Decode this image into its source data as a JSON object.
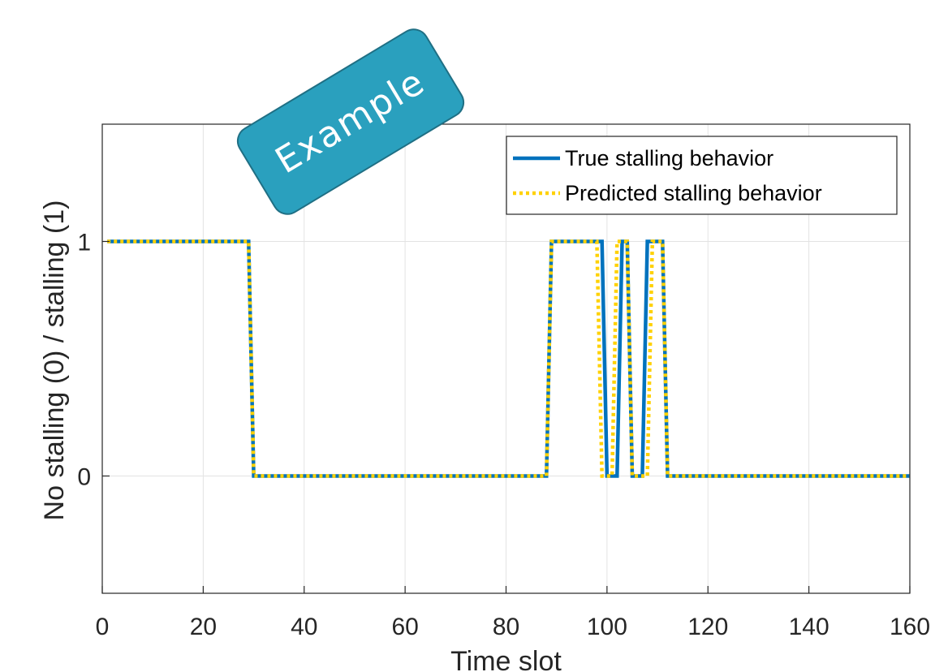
{
  "chart_data": {
    "type": "line",
    "title": "",
    "xlabel": "Time slot",
    "ylabel": "No stalling (0) / stalling (1)",
    "xlim": [
      0,
      160
    ],
    "ylim": [
      -0.5,
      1.5
    ],
    "xticks": [
      0,
      20,
      40,
      60,
      80,
      100,
      120,
      140,
      160
    ],
    "yticks": [
      0,
      1
    ],
    "grid": true,
    "legend_position": "top-right",
    "series": [
      {
        "name": "True stalling behavior",
        "color": "#0072BD",
        "style": "solid",
        "x": [
          1,
          29,
          30,
          88,
          89,
          99,
          100,
          102,
          103,
          104,
          105,
          107,
          108,
          111,
          112,
          160
        ],
        "y": [
          1,
          1,
          0,
          0,
          1,
          1,
          0,
          0,
          1,
          1,
          0,
          0,
          1,
          1,
          0,
          0
        ]
      },
      {
        "name": "Predicted stalling behavior",
        "color": "#FFD100",
        "style": "dotted",
        "x": [
          1,
          29,
          30,
          88,
          89,
          98,
          99,
          101,
          102,
          104,
          105,
          108,
          109,
          111,
          112,
          160
        ],
        "y": [
          1,
          1,
          0,
          0,
          1,
          1,
          0,
          0,
          1,
          1,
          0,
          0,
          1,
          1,
          0,
          0
        ]
      }
    ]
  },
  "annotation": {
    "badge_text": "Example",
    "badge_color": "#2AA0BE"
  }
}
